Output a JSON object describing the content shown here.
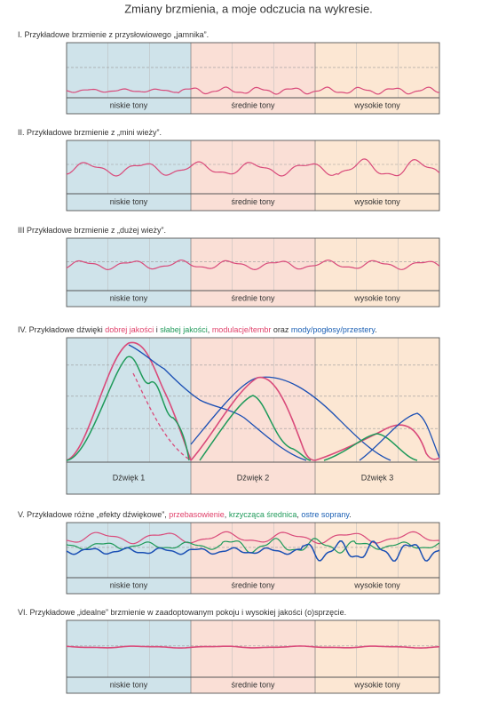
{
  "title": "Zmiany brzmienia, a moje odczucia na wykresie.",
  "sections": [
    {
      "heading": [
        {
          "text": "I. Przykładowe brzmienie z przysłowiowego „jamnika”."
        }
      ],
      "bands": [
        "niskie  tony",
        "średnie  tony",
        "wysokie  tony"
      ]
    },
    {
      "heading": [
        {
          "text": "II. Przykładowe brzmienie z „mini wieży”."
        }
      ],
      "bands": [
        "niskie  tony",
        "średnie  tony",
        "wysokie  tony"
      ]
    },
    {
      "heading": [
        {
          "text": "III  Przykładowe brzmienie z „dużej wieży”."
        }
      ],
      "bands": [
        "niskie  tony",
        "średnie  tony",
        "wysokie  tony"
      ]
    },
    {
      "heading": [
        {
          "text": "IV. Przykładowe dźwięki "
        },
        {
          "text": "dobrej jakości",
          "color": "#e0406a"
        },
        {
          "text": " i "
        },
        {
          "text": "słabej jakości",
          "color": "#1f9a5a"
        },
        {
          "text": ", "
        },
        {
          "text": "modulacje/tembr",
          "color": "#e0406a"
        },
        {
          "text": " oraz "
        },
        {
          "text": "mody/pogłosy/przestery",
          "color": "#1a5fb4"
        },
        {
          "text": "."
        }
      ],
      "bands": [
        "Dźwięk 1",
        "Dźwięk 2",
        "Dźwięk 3"
      ]
    },
    {
      "heading": [
        {
          "text": "V. Przykładowe różne „efekty dźwiękowe”, "
        },
        {
          "text": "przebasowienie",
          "color": "#e0406a"
        },
        {
          "text": ", "
        },
        {
          "text": "krzycząca średnica",
          "color": "#1f9a5a"
        },
        {
          "text": ", "
        },
        {
          "text": "ostre soprany",
          "color": "#1a5fb4"
        },
        {
          "text": "."
        }
      ],
      "bands": [
        "niskie  tony",
        "średnie  tony",
        "wysokie  tony"
      ]
    },
    {
      "heading": [
        {
          "text": "VI. Przykładowe „idealne” brzmienie w zaadoptowanym pokoju i wysokiej jakości (o)sprzęcie."
        }
      ],
      "bands": [
        "niskie  tony",
        "średnie  tony",
        "wysokie  tony"
      ]
    }
  ]
}
